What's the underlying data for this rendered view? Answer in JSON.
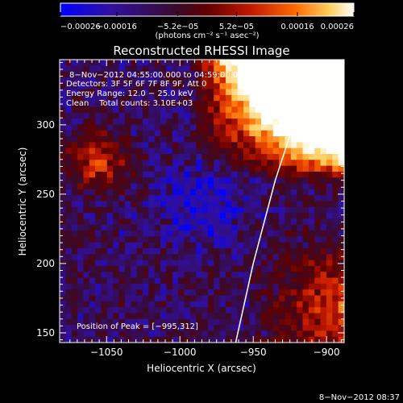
{
  "chart_data": {
    "type": "heatmap",
    "title": "Reconstructed RHESSI Image",
    "xlabel": "Heliocentric X (arcsec)",
    "ylabel": "Heliocentric Y (arcsec)",
    "xlim": [
      -1082,
      -888
    ],
    "ylim": [
      143,
      347
    ],
    "x_ticks": [
      -1050,
      -1000,
      -950,
      -900
    ],
    "x_tick_labels": [
      "−1050",
      "−1000",
      "−950",
      "−900"
    ],
    "y_ticks": [
      150,
      200,
      250,
      300
    ],
    "y_tick_labels": [
      "150",
      "200",
      "250",
      "300"
    ],
    "colorbar": {
      "range": [
        -0.00026,
        0.00026
      ],
      "ticks": [
        -0.00026,
        -0.00016,
        -5.2e-05,
        5.2e-05,
        0.00016,
        0.00026
      ],
      "tick_labels": [
        "−0.00026",
        "−0.00016",
        "−5.2e−05",
        "5.2e−05",
        "0.00016",
        "0.00026"
      ],
      "units": "(photons cm⁻² s⁻¹ asec⁻²)",
      "colors": [
        "#0000ff",
        "#3010a0",
        "#3a0a2a",
        "#600000",
        "#c41800",
        "#ff6a00",
        "#ffd060",
        "#ffffff"
      ]
    },
    "annotations": [
      "8−Nov−2012 04:55:00.000 to 04:59:00.000",
      "Detectors: 3F 5F 6F 7F 8F 9F, Att 0",
      "Energy Range: 12.0 − 25.0 keV",
      "Clean    Total counts: 3.10E+03"
    ],
    "peak_label": "Position of Peak = [−995,312]",
    "limb_curve": [
      [
        -962,
        143
      ],
      [
        -950,
        200
      ],
      [
        -935,
        260
      ],
      [
        -918,
        315
      ],
      [
        -904,
        347
      ]
    ],
    "grid": false
  },
  "footer": {
    "timestamp": "8−Nov−2012 08:37"
  }
}
